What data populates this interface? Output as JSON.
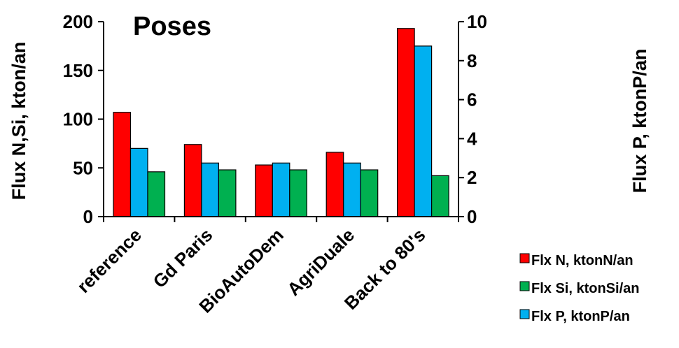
{
  "chart_data": {
    "type": "bar",
    "title": "Poses",
    "categories": [
      "reference",
      "Gd Paris",
      "BioAutoDem",
      "AgriDuale",
      "Back to 80's"
    ],
    "left_axis": {
      "label": "Flux N,Si, kton/an",
      "range": [
        0,
        200
      ],
      "ticks": [
        0,
        50,
        100,
        150,
        200
      ]
    },
    "right_axis": {
      "label": "Flux P, ktonP/an",
      "range": [
        0,
        10
      ],
      "ticks": [
        0,
        2,
        4,
        6,
        8,
        10
      ]
    },
    "series": [
      {
        "name": "Flx N, ktonN/an",
        "axis": "left",
        "color": "#ff0000",
        "values": [
          107,
          74,
          53,
          66,
          193
        ]
      },
      {
        "name": "Flx P, ktonP/an",
        "axis": "right",
        "color": "#00b0f0",
        "values": [
          3.5,
          2.75,
          2.75,
          2.75,
          8.75
        ]
      },
      {
        "name": "Flx Si, ktonSi/an",
        "axis": "left",
        "color": "#00b050",
        "values": [
          46,
          48,
          48,
          48,
          42
        ]
      }
    ],
    "legend_order": [
      "Flx N, ktonN/an",
      "Flx Si, ktonSi/an",
      "Flx P, ktonP/an"
    ],
    "legend_placement": "bottom-right",
    "grid": false
  }
}
